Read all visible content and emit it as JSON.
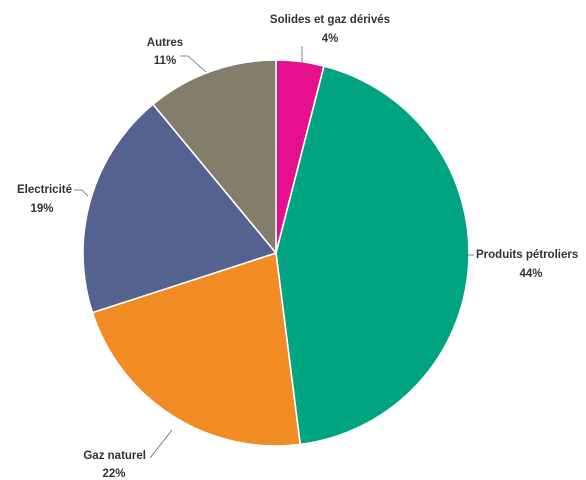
{
  "chart_data": {
    "type": "pie",
    "title": "",
    "slices": [
      {
        "label": "Produits pétroliers",
        "value_text": "44%",
        "value": 44,
        "color": "#00a480"
      },
      {
        "label": "Gaz naturel",
        "value_text": "22%",
        "value": 22,
        "color": "#f18b24"
      },
      {
        "label": "Electricité",
        "value_text": "19%",
        "value": 19,
        "color": "#53628f"
      },
      {
        "label": "Autres",
        "value_text": "11%",
        "value": 11,
        "color": "#857d6c"
      },
      {
        "label": "Solides et gaz dérivés",
        "value_text": "4%",
        "value": 4,
        "color": "#e60f8e"
      }
    ]
  }
}
